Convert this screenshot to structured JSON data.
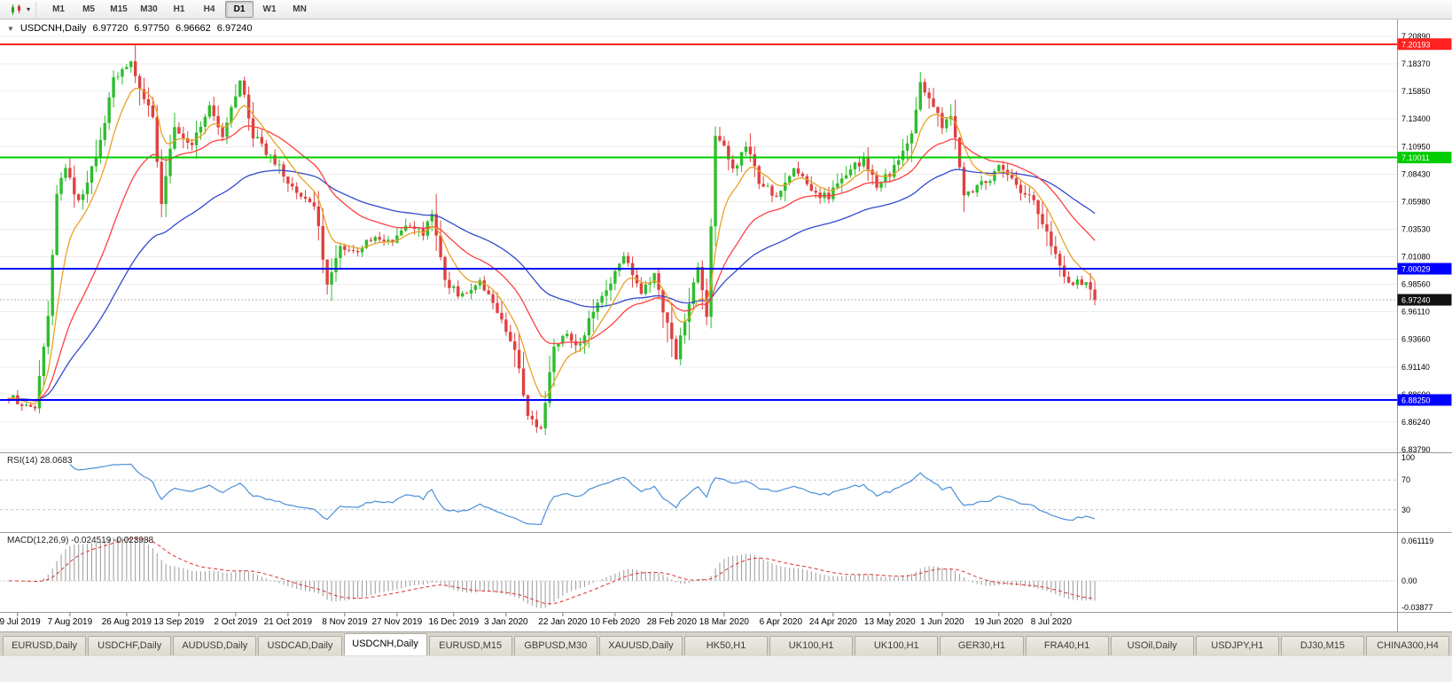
{
  "toolbar": {
    "timeframes": [
      {
        "label": "M1",
        "active": false
      },
      {
        "label": "M5",
        "active": false
      },
      {
        "label": "M15",
        "active": false
      },
      {
        "label": "M30",
        "active": false
      },
      {
        "label": "H1",
        "active": false
      },
      {
        "label": "H4",
        "active": false
      },
      {
        "label": "D1",
        "active": true
      },
      {
        "label": "W1",
        "active": false
      },
      {
        "label": "MN",
        "active": false
      }
    ]
  },
  "chart": {
    "title": {
      "symbol": "USDCNH,Daily",
      "open": "6.97720",
      "high": "6.97750",
      "low": "6.96662",
      "close": "6.97240"
    },
    "price_axis_labels": [
      "7.20890",
      "7.18370",
      "7.15850",
      "7.13400",
      "7.10950",
      "7.08430",
      "7.05980",
      "7.03530",
      "7.01080",
      "6.98560",
      "6.96110",
      "6.93660",
      "6.91140",
      "6.88690",
      "6.86240",
      "6.83790"
    ],
    "date_axis_labels": [
      "19 Jul 2019",
      "7 Aug 2019",
      "26 Aug 2019",
      "13 Sep 2019",
      "2 Oct 2019",
      "21 Oct 2019",
      "8 Nov 2019",
      "27 Nov 2019",
      "16 Dec 2019",
      "3 Jan 2020",
      "22 Jan 2020",
      "10 Feb 2020",
      "28 Feb 2020",
      "18 Mar 2020",
      "6 Apr 2020",
      "24 Apr 2020",
      "13 May 2020",
      "1 Jun 2020",
      "19 Jun 2020",
      "8 Jul 2020"
    ]
  },
  "chart_data": {
    "type": "candlestick",
    "symbol": "USDCNH",
    "period": "Daily",
    "ohlc_current": {
      "open": 6.9772,
      "high": 6.9775,
      "low": 6.96662,
      "close": 6.9724
    },
    "price_scale": {
      "top": 7.2089,
      "bottom": 6.8379
    },
    "num_candles": 250,
    "close_path": {
      "indices": [
        0,
        6,
        9,
        11,
        13,
        16,
        20,
        24,
        28,
        30,
        33,
        35,
        38,
        42,
        46,
        49,
        53,
        56,
        60,
        65,
        70,
        73,
        76,
        80,
        84,
        88,
        92,
        95,
        97,
        100,
        104,
        108,
        112,
        116,
        119,
        122,
        125,
        128,
        131,
        134,
        138,
        141,
        145,
        148,
        151,
        153,
        156,
        158,
        160,
        162,
        164,
        166,
        169,
        172,
        176,
        180,
        184,
        188,
        192,
        196,
        199,
        203,
        207,
        209,
        211,
        214,
        216,
        219,
        223,
        227,
        231,
        235,
        238,
        241,
        244,
        247,
        249
      ],
      "prices": [
        6.884,
        6.878,
        6.96,
        7.07,
        7.09,
        7.06,
        7.1,
        7.17,
        7.19,
        7.16,
        7.14,
        7.06,
        7.13,
        7.11,
        7.15,
        7.12,
        7.17,
        7.12,
        7.1,
        7.075,
        7.06,
        6.985,
        7.02,
        7.015,
        7.03,
        7.025,
        7.04,
        7.03,
        7.05,
        6.99,
        6.975,
        6.99,
        6.96,
        6.93,
        6.87,
        6.855,
        6.93,
        6.94,
        6.93,
        6.965,
        6.99,
        7.015,
        6.98,
        6.995,
        6.95,
        6.92,
        6.97,
        7.0,
        6.96,
        7.12,
        7.11,
        7.09,
        7.11,
        7.08,
        7.065,
        7.09,
        7.07,
        7.065,
        7.085,
        7.1,
        7.075,
        7.09,
        7.12,
        7.17,
        7.155,
        7.13,
        7.14,
        7.065,
        7.075,
        7.09,
        7.075,
        7.06,
        7.03,
        7.0,
        6.985,
        6.99,
        6.9724
      ]
    },
    "horizontal_lines": [
      {
        "price": 7.20193,
        "label": "7.20193",
        "color": "#FF2020"
      },
      {
        "price": 7.10011,
        "label": "7.10011",
        "color": "#00CC00"
      },
      {
        "price": 7.00029,
        "label": "7.00029",
        "color": "#0000FF"
      },
      {
        "price": 6.8825,
        "label": "6.88250",
        "color": "#0000FF"
      }
    ],
    "current_price": {
      "value": 6.9724,
      "label": "6.97240"
    },
    "moving_averages": [
      {
        "name": "fast",
        "period": 8,
        "color": "#E8A226"
      },
      {
        "name": "medium",
        "period": 25,
        "color": "#FF4040"
      },
      {
        "name": "slow",
        "period": 55,
        "color": "#3349CC"
      }
    ],
    "colors": {
      "up": "#2EBD2E",
      "down": "#E04040",
      "grid": "#ECECEC"
    }
  },
  "rsi": {
    "label": "RSI(14) 28.0683",
    "period": 14,
    "current_value": 28.0683,
    "axis_labels": [
      "100",
      "70",
      "30"
    ],
    "levels": [
      70,
      30
    ],
    "line_color": "#4A90D9"
  },
  "macd": {
    "label": "MACD(12,26,9) -0.024519 -0.023988",
    "fast": 12,
    "slow": 26,
    "signal": 9,
    "axis_labels": [
      "0.061119",
      "0.00",
      "-0.03877"
    ],
    "scale": {
      "max": 0.0612,
      "min": -0.0388
    },
    "histogram_color": "#9A9A9A",
    "signal_color": "#E03030"
  },
  "tabs": [
    {
      "label": "EURUSD,Daily",
      "active": false
    },
    {
      "label": "USDCHF,Daily",
      "active": false
    },
    {
      "label": "AUDUSD,Daily",
      "active": false
    },
    {
      "label": "USDCAD,Daily",
      "active": false
    },
    {
      "label": "USDCNH,Daily",
      "active": true
    },
    {
      "label": "EURUSD,M15",
      "active": false
    },
    {
      "label": "GBPUSD,M30",
      "active": false
    },
    {
      "label": "XAUUSD,Daily",
      "active": false
    },
    {
      "label": "HK50,H1",
      "active": false
    },
    {
      "label": "UK100,H1",
      "active": false
    },
    {
      "label": "UK100,H1",
      "active": false
    },
    {
      "label": "GER30,H1",
      "active": false
    },
    {
      "label": "FRA40,H1",
      "active": false
    },
    {
      "label": "USOil,Daily",
      "active": false
    },
    {
      "label": "USDJPY,H1",
      "active": false
    },
    {
      "label": "DJ30,M15",
      "active": false
    },
    {
      "label": "CHINA300,H4",
      "active": false
    }
  ]
}
